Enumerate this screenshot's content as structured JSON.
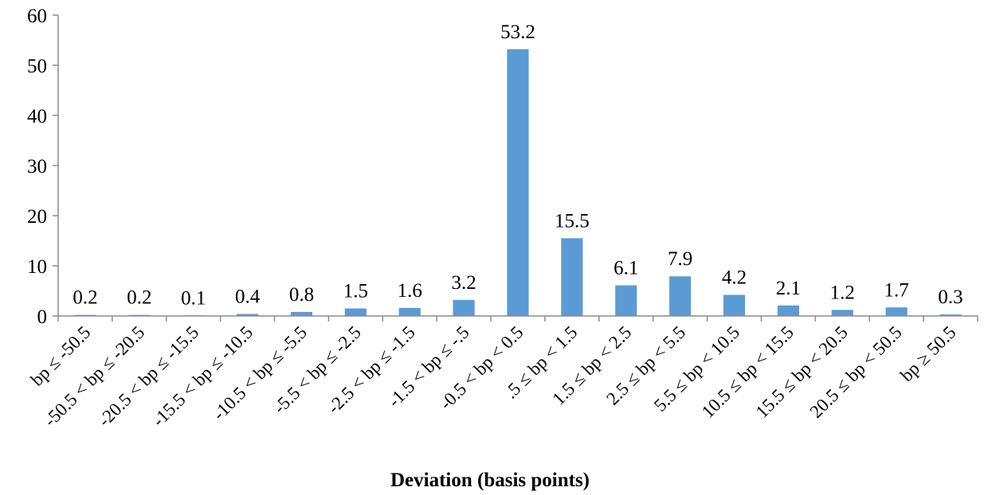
{
  "chart_data": {
    "type": "bar",
    "title": "",
    "xlabel": "Deviation (basis points)",
    "ylabel": "",
    "ylim": [
      0,
      60
    ],
    "yticks": [
      0,
      10,
      20,
      30,
      40,
      50,
      60
    ],
    "grid": false,
    "legend": "none",
    "bar_color": "#5b9bd5",
    "categories": [
      "bp ≤ -50.5",
      "-50.5 < bp ≤ -20.5",
      "-20.5 < bp ≤ -15.5",
      "-15.5 < bp ≤ -10.5",
      "-10.5 < bp ≤ -5.5",
      "-5.5 < bp ≤ -2.5",
      "-2.5 < bp ≤ -1.5",
      "-1.5 < bp ≤ -.5",
      "-0.5 < bp < 0.5",
      ".5 ≤ bp < 1.5",
      "1.5 ≤ bp < 2.5",
      "2.5 ≤ bp < 5.5",
      "5.5 ≤ bp < 10.5",
      "10.5 ≤ bp < 15.5",
      "15.5 ≤ bp < 20.5",
      "20.5 ≤ bp < 50.5",
      "bp ≥ 50.5"
    ],
    "values": [
      0.2,
      0.2,
      0.1,
      0.4,
      0.8,
      1.5,
      1.6,
      3.2,
      53.2,
      15.5,
      6.1,
      7.9,
      4.2,
      2.1,
      1.2,
      1.7,
      0.3
    ],
    "data_labels": [
      "0.2",
      "0.2",
      "0.1",
      "0.4",
      "0.8",
      "1.5",
      "1.6",
      "3.2",
      "53.2",
      "15.5",
      "6.1",
      "7.9",
      "4.2",
      "2.1",
      "1.2",
      "1.7",
      "0.3"
    ]
  }
}
